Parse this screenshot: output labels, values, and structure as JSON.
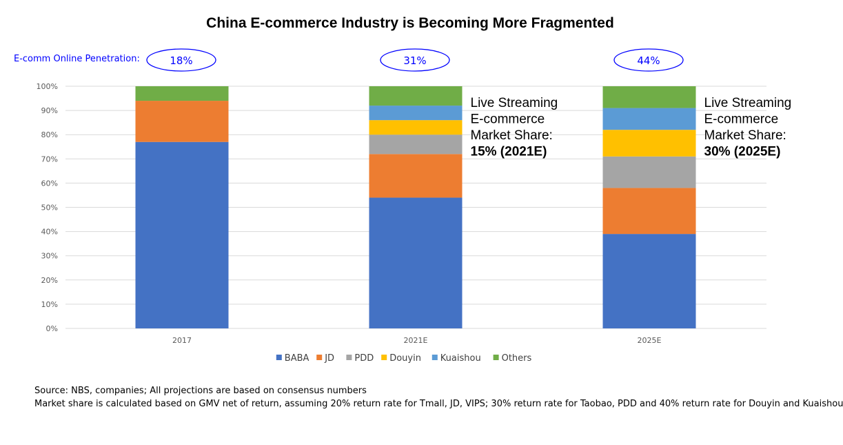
{
  "chart_data": {
    "type": "bar",
    "stacked": true,
    "title": "China E-commerce Industry is Becoming More Fragmented",
    "categories": [
      "2017",
      "2021E",
      "2025E"
    ],
    "ylim": [
      0,
      100
    ],
    "yticks": [
      "0%",
      "10%",
      "20%",
      "30%",
      "40%",
      "50%",
      "60%",
      "70%",
      "80%",
      "90%",
      "100%"
    ],
    "grid": true,
    "legend_position": "bottom",
    "series": [
      {
        "name": "BABA",
        "color": "#4472C4",
        "values": [
          77,
          54,
          39
        ]
      },
      {
        "name": "JD",
        "color": "#ED7D31",
        "values": [
          17,
          18,
          19
        ]
      },
      {
        "name": "PDD",
        "color": "#A5A5A5",
        "values": [
          0,
          8,
          13
        ]
      },
      {
        "name": "Douyin",
        "color": "#FFC000",
        "values": [
          0,
          6,
          11
        ]
      },
      {
        "name": "Kuaishou",
        "color": "#5B9BD5",
        "values": [
          0,
          6,
          9
        ]
      },
      {
        "name": "Others",
        "color": "#70AD47",
        "values": [
          6,
          8,
          9
        ]
      }
    ],
    "penetration": {
      "label": "E-comm Online Penetration:",
      "values": [
        "18%",
        "31%",
        "44%"
      ]
    },
    "annotations": [
      {
        "category": "2021E",
        "lines": [
          "Live Streaming",
          "E-commerce",
          "Market Share:"
        ],
        "bold": "15% (2021E)"
      },
      {
        "category": "2025E",
        "lines": [
          "Live Streaming",
          "E-commerce",
          "Market Share:"
        ],
        "bold": "30% (2025E)"
      }
    ]
  },
  "footer": {
    "source": "Source: NBS, companies; All projections are based on consensus numbers",
    "note": "Market share is calculated based on GMV net of return, assuming 20% return rate for Tmall, JD, VIPS; 30% return rate for Taobao, PDD and 40% return rate for Douyin and Kuaishou"
  }
}
